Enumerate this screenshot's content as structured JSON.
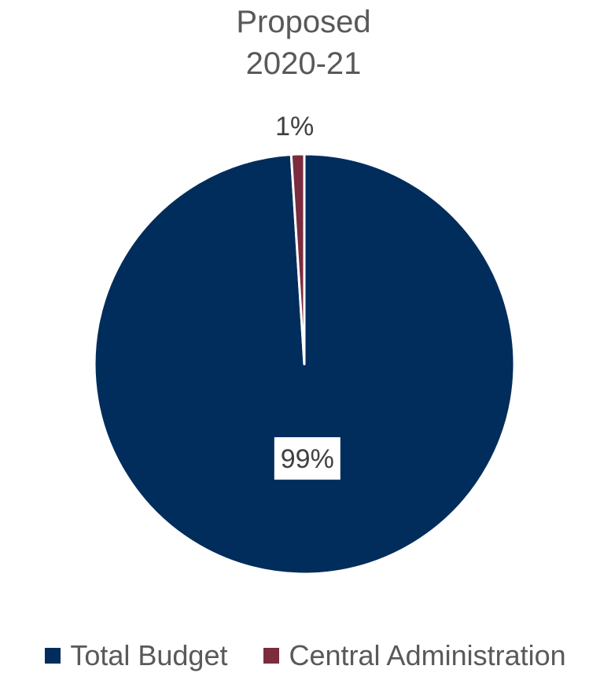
{
  "chart_data": {
    "type": "pie",
    "title": [
      "Proposed",
      "2020-21"
    ],
    "categories": [
      "Total Budget",
      "Central Administration"
    ],
    "values": [
      99,
      1
    ],
    "data_labels": [
      "99%",
      "1%"
    ],
    "colors": [
      "#002D5B",
      "#7B2C3F"
    ],
    "legend_position": "bottom"
  }
}
